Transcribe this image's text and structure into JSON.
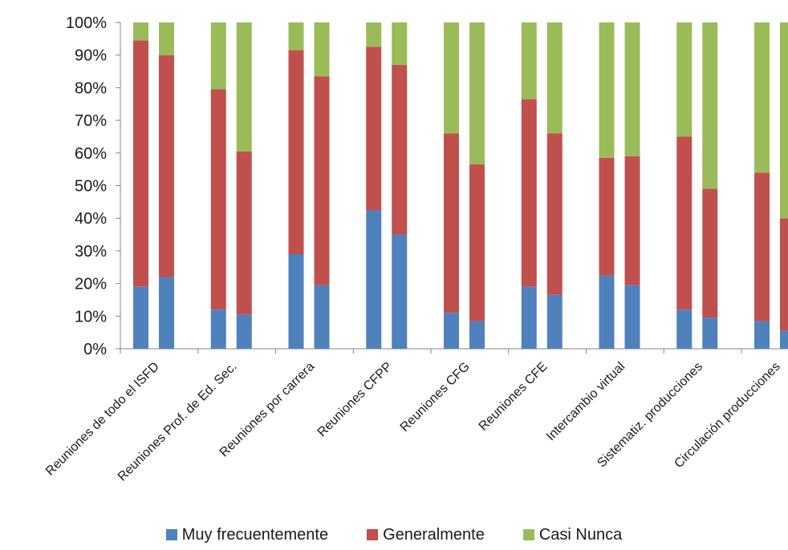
{
  "chart_data": {
    "type": "bar",
    "stacked": true,
    "percent": true,
    "title": "",
    "xlabel": "",
    "ylabel": "",
    "ylim": [
      0,
      100
    ],
    "yticks": [
      "0%",
      "10%",
      "20%",
      "30%",
      "40%",
      "50%",
      "60%",
      "70%",
      "80%",
      "90%",
      "100%"
    ],
    "grid": false,
    "legend_position": "bottom",
    "categories": [
      "Reuniones de todo el ISFD",
      "Reuniones Prof. de Ed. Sec.",
      "Reuniones por carrera",
      "Reuniones CFPP",
      "Reuniones CFG",
      "Reuniones CFE",
      "Intercambio virtual",
      "Sistematiz. producciones",
      "Circulación producciones"
    ],
    "bars_per_category": 2,
    "series": [
      {
        "name": "Muy frecuentemente",
        "color": "#4f81bd",
        "values": [
          [
            19,
            22
          ],
          [
            12,
            10.5
          ],
          [
            29,
            19.5
          ],
          [
            42.5,
            35
          ],
          [
            11,
            8.5
          ],
          [
            19,
            16.5
          ],
          [
            22.5,
            19.5
          ],
          [
            12,
            9.5
          ],
          [
            8.5,
            5.5
          ]
        ]
      },
      {
        "name": "Generalmente",
        "color": "#c0504d",
        "values": [
          [
            75.5,
            68
          ],
          [
            67.5,
            50
          ],
          [
            62.5,
            64
          ],
          [
            50,
            52
          ],
          [
            55,
            48
          ],
          [
            57.5,
            49.5
          ],
          [
            36,
            39.5
          ],
          [
            53,
            39.5
          ],
          [
            45.5,
            34.5
          ]
        ]
      },
      {
        "name": "Casi Nunca",
        "color": "#9bbb59",
        "values": [
          [
            5.5,
            10
          ],
          [
            20.5,
            39.5
          ],
          [
            8.5,
            16.5
          ],
          [
            7.5,
            13
          ],
          [
            34,
            43.5
          ],
          [
            23.5,
            34
          ],
          [
            41.5,
            41
          ],
          [
            35,
            51
          ],
          [
            46,
            60
          ]
        ]
      }
    ]
  }
}
